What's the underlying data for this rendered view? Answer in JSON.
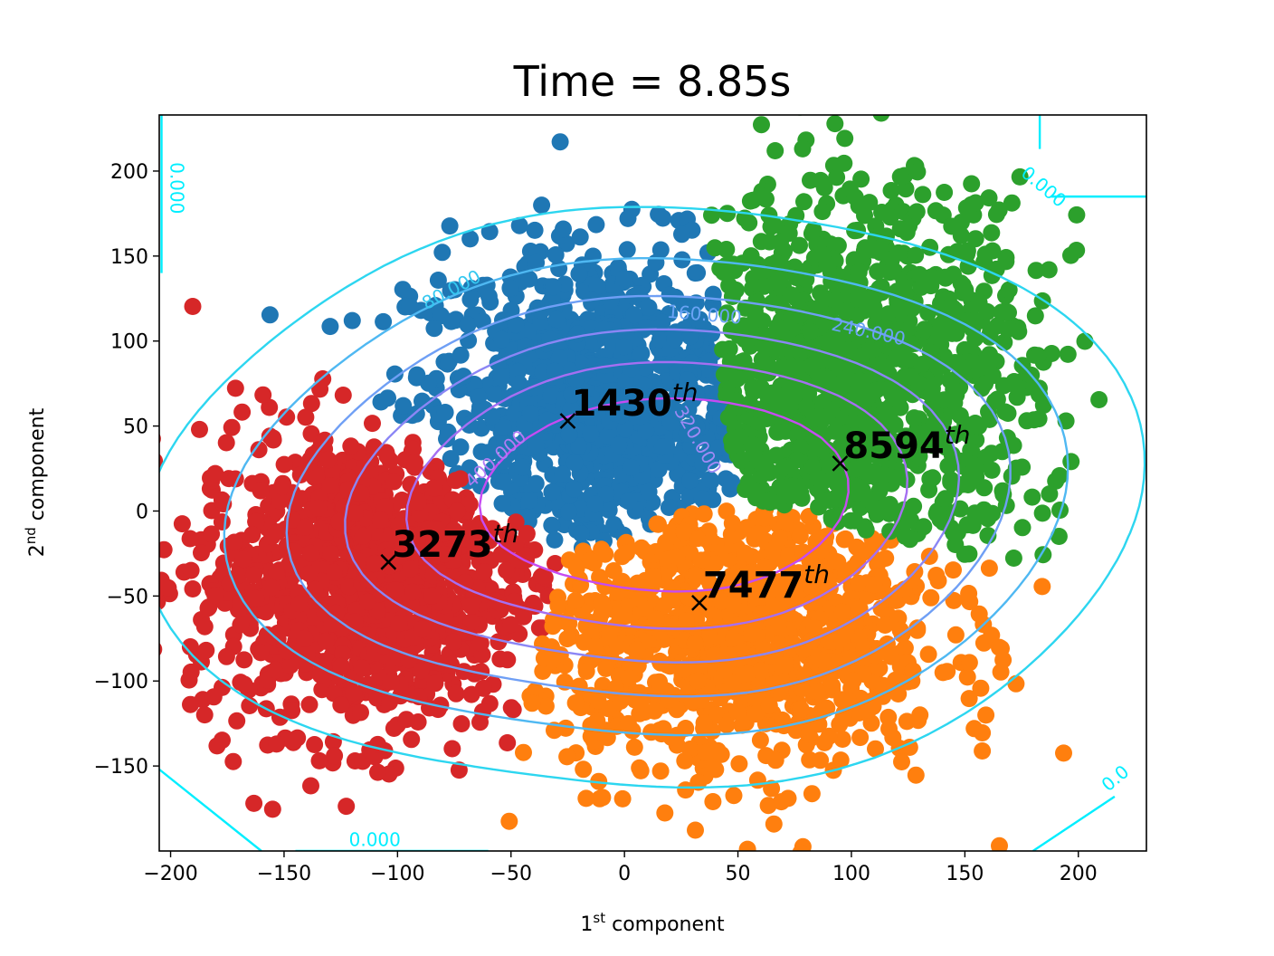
{
  "chart_data": {
    "type": "scatter",
    "title": "Time = 8.85s",
    "xlabel": {
      "base": "1",
      "sup": "st",
      "rest": " component"
    },
    "ylabel": {
      "base": "2",
      "sup": "nd",
      "rest": " component"
    },
    "xlim": [
      -205,
      230
    ],
    "ylim": [
      -200,
      233
    ],
    "x_ticks": [
      -200,
      -150,
      -100,
      -50,
      0,
      50,
      100,
      150,
      200
    ],
    "y_ticks": [
      -150,
      -100,
      -50,
      0,
      50,
      100,
      150,
      200
    ],
    "x_tick_labels": [
      "−200",
      "−150",
      "−100",
      "−50",
      "0",
      "50",
      "100",
      "150",
      "200"
    ],
    "y_tick_labels": [
      "−150",
      "−100",
      "−50",
      "0",
      "50",
      "100",
      "150",
      "200"
    ],
    "grid": false,
    "clusters": [
      {
        "color": "#1f77b4",
        "center": [
          -10,
          60
        ],
        "spread": [
          42,
          48
        ],
        "count": 900
      },
      {
        "color": "#d62728",
        "center": [
          -115,
          -40
        ],
        "spread": [
          38,
          45
        ],
        "count": 1100
      },
      {
        "color": "#ff7f0e",
        "center": [
          50,
          -70
        ],
        "spread": [
          45,
          42
        ],
        "count": 1100
      },
      {
        "color": "#2ca02c",
        "center": [
          100,
          70
        ],
        "spread": [
          40,
          60
        ],
        "count": 1100
      }
    ],
    "markers": [
      {
        "x": -25,
        "y": 53,
        "label": "1430",
        "sup": "th"
      },
      {
        "x": -104,
        "y": -30,
        "label": "3273",
        "sup": "th"
      },
      {
        "x": 33,
        "y": -54,
        "label": "7477",
        "sup": "th"
      },
      {
        "x": 95,
        "y": 28,
        "label": "8594",
        "sup": "th"
      }
    ],
    "contour_levels": [
      0,
      80,
      160,
      240,
      320,
      400,
      480
    ],
    "contour_labels": [
      {
        "text": "0.000",
        "x": -200,
        "y": 190,
        "rotate": 90,
        "color": "#00eeff"
      },
      {
        "text": "0.000",
        "x": 183,
        "y": 188,
        "rotate": 40,
        "color": "#00eeff"
      },
      {
        "text": "0.000",
        "x": -110,
        "y": -197,
        "rotate": 0,
        "color": "#00eeff"
      },
      {
        "text": "0.0",
        "x": 218,
        "y": -160,
        "rotate": -40,
        "color": "#00eeff"
      },
      {
        "text": "80.000",
        "x": -75,
        "y": 127,
        "rotate": -28,
        "color": "#35c8f0"
      },
      {
        "text": "160.000",
        "x": 35,
        "y": 112,
        "rotate": 5,
        "color": "#6aa3f5"
      },
      {
        "text": "240.000",
        "x": 107,
        "y": 102,
        "rotate": 12,
        "color": "#6aa3f5"
      },
      {
        "text": "400.000",
        "x": -55,
        "y": 28,
        "rotate": -42,
        "color": "#b07cf5"
      },
      {
        "text": "320.000",
        "x": 30,
        "y": 40,
        "rotate": 60,
        "color": "#9f8af5"
      }
    ]
  }
}
